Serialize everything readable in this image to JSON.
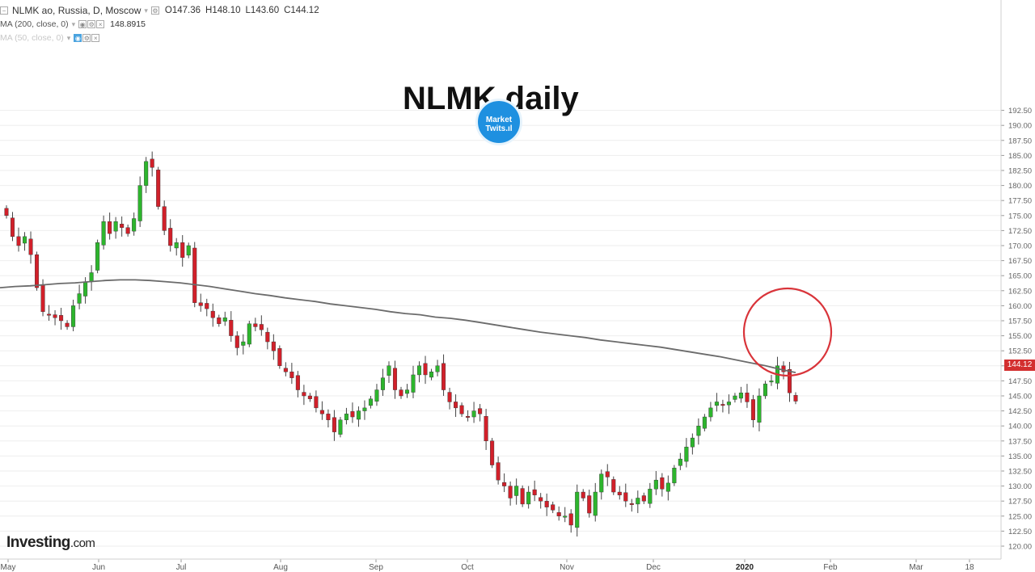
{
  "header": {
    "symbol_line": "NLMK ao, Russia, D, Moscow",
    "open": "O147.36",
    "high": "H148.10",
    "low": "L143.60",
    "close": "C144.12",
    "ma200_label": "MA (200, close, 0)",
    "ma200_value": "148.8915",
    "ma50_label": "MA (50, close, 0)"
  },
  "overlay": {
    "title": "NLMK daily",
    "logo_text_1": "Market",
    "logo_text_2": "Twits.ıl",
    "brand": "Investing",
    "brand_suffix": ".com",
    "last_price": "144.12"
  },
  "colors": {
    "up": "#2db52d",
    "down": "#d1202a",
    "ma": "#6b6b6b",
    "circle": "#d9343a",
    "grid": "#eeeeee"
  },
  "chart_data": {
    "type": "candlestick",
    "title": "NLMK daily",
    "y_axis_ticks": [
      "120.00",
      "122.50",
      "125.00",
      "127.50",
      "130.00",
      "132.50",
      "135.00",
      "137.50",
      "140.00",
      "142.50",
      "145.00",
      "147.50",
      "150.00",
      "152.50",
      "155.00",
      "157.50",
      "160.00",
      "162.50",
      "165.00",
      "167.50",
      "170.00",
      "172.50",
      "175.00",
      "177.50",
      "180.00",
      "182.50",
      "185.00",
      "187.50",
      "190.00",
      "192.50"
    ],
    "x_axis_labels": [
      "May",
      "Jun",
      "Jul",
      "Aug",
      "Sep",
      "Oct",
      "Nov",
      "Dec",
      "2020",
      "Feb",
      "Mar",
      "18"
    ],
    "ylim": [
      119,
      193
    ],
    "closes": [
      175,
      171.5,
      170,
      171.5,
      168.5,
      163,
      159,
      158.5,
      158,
      157.5,
      156.5,
      160,
      162,
      164,
      165.5,
      170.5,
      174,
      172,
      174,
      173,
      172,
      174.5,
      180,
      184,
      183,
      176.5,
      172.5,
      170,
      170.5,
      168,
      170,
      160.5,
      160,
      159.5,
      158,
      157,
      158,
      155,
      153,
      154,
      157,
      156.5,
      156,
      154,
      152.5,
      150,
      149,
      148,
      146,
      145,
      144.5,
      143,
      142,
      141,
      139,
      141,
      142,
      141.5,
      142.5,
      143,
      144.5,
      146,
      148,
      150,
      146,
      145,
      146,
      148.5,
      150,
      148.5,
      149,
      150,
      146,
      144,
      143,
      142,
      141.5,
      142.5,
      142,
      137.5,
      133.5,
      131,
      130,
      128,
      130,
      127,
      129,
      128.5,
      127.5,
      126.5,
      126,
      125,
      125,
      123.5,
      129,
      128,
      125.5,
      129,
      132,
      131.5,
      129,
      128.5,
      127.5,
      127,
      128,
      127.5,
      129.5,
      131,
      129.5,
      130.5,
      133,
      134.5,
      136.5,
      138,
      140,
      141.5,
      143,
      144,
      143.5,
      144,
      145,
      145.5,
      144,
      141,
      145,
      147,
      147.5,
      150,
      149,
      145.5,
      144.12
    ],
    "ma200": [
      163,
      163.2,
      163.3,
      163.5,
      163.7,
      163.8,
      164,
      164.2,
      164.3,
      164.3,
      164.2,
      164,
      163.8,
      163.5,
      163.2,
      162.8,
      162.4,
      162,
      161.7,
      161.3,
      161,
      160.7,
      160.3,
      160,
      159.7,
      159.4,
      159,
      158.7,
      158.5,
      158.1,
      157.9,
      157.6,
      157.2,
      156.8,
      156.4,
      156,
      155.6,
      155.3,
      155,
      154.7,
      154.3,
      154,
      153.7,
      153.4,
      153.1,
      152.7,
      152.3,
      151.9,
      151.5,
      151,
      150.5,
      150,
      149.4,
      148.89
    ]
  }
}
